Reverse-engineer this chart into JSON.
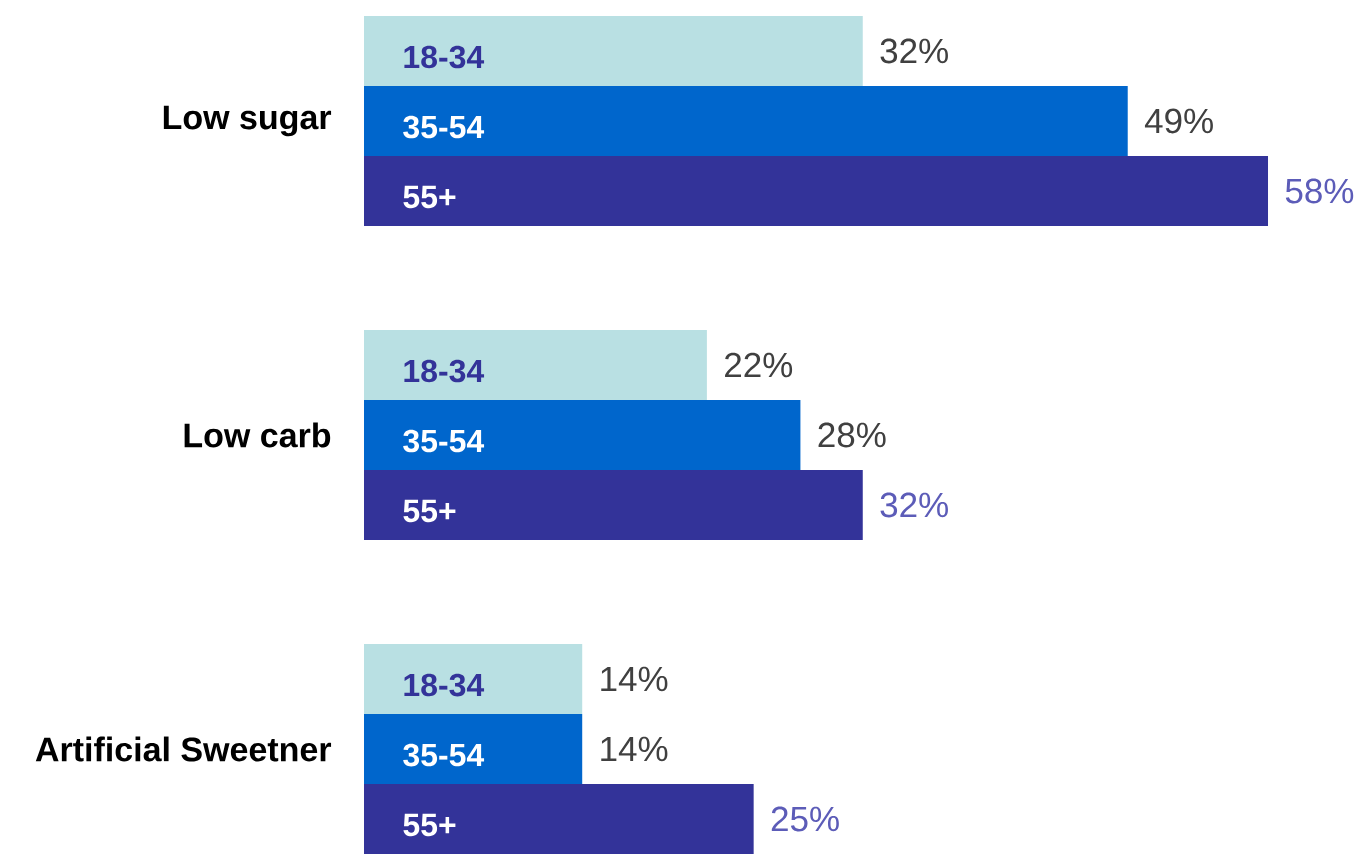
{
  "chart_data": {
    "type": "bar",
    "orientation": "horizontal",
    "categories": [
      "Low sugar",
      "Low carb",
      "Artificial Sweetner"
    ],
    "series": [
      {
        "name": "18-34",
        "color": "#b9e0e3",
        "values": [
          32,
          22,
          14
        ],
        "value_labels": [
          "32%",
          "22%",
          "14%"
        ]
      },
      {
        "name": "35-54",
        "color": "#0066cc",
        "values": [
          49,
          28,
          14
        ],
        "value_labels": [
          "49%",
          "28%",
          "14%"
        ]
      },
      {
        "name": "55+",
        "color": "#333399",
        "values": [
          58,
          32,
          25
        ],
        "value_labels": [
          "58%",
          "32%",
          "25%"
        ]
      }
    ]
  }
}
